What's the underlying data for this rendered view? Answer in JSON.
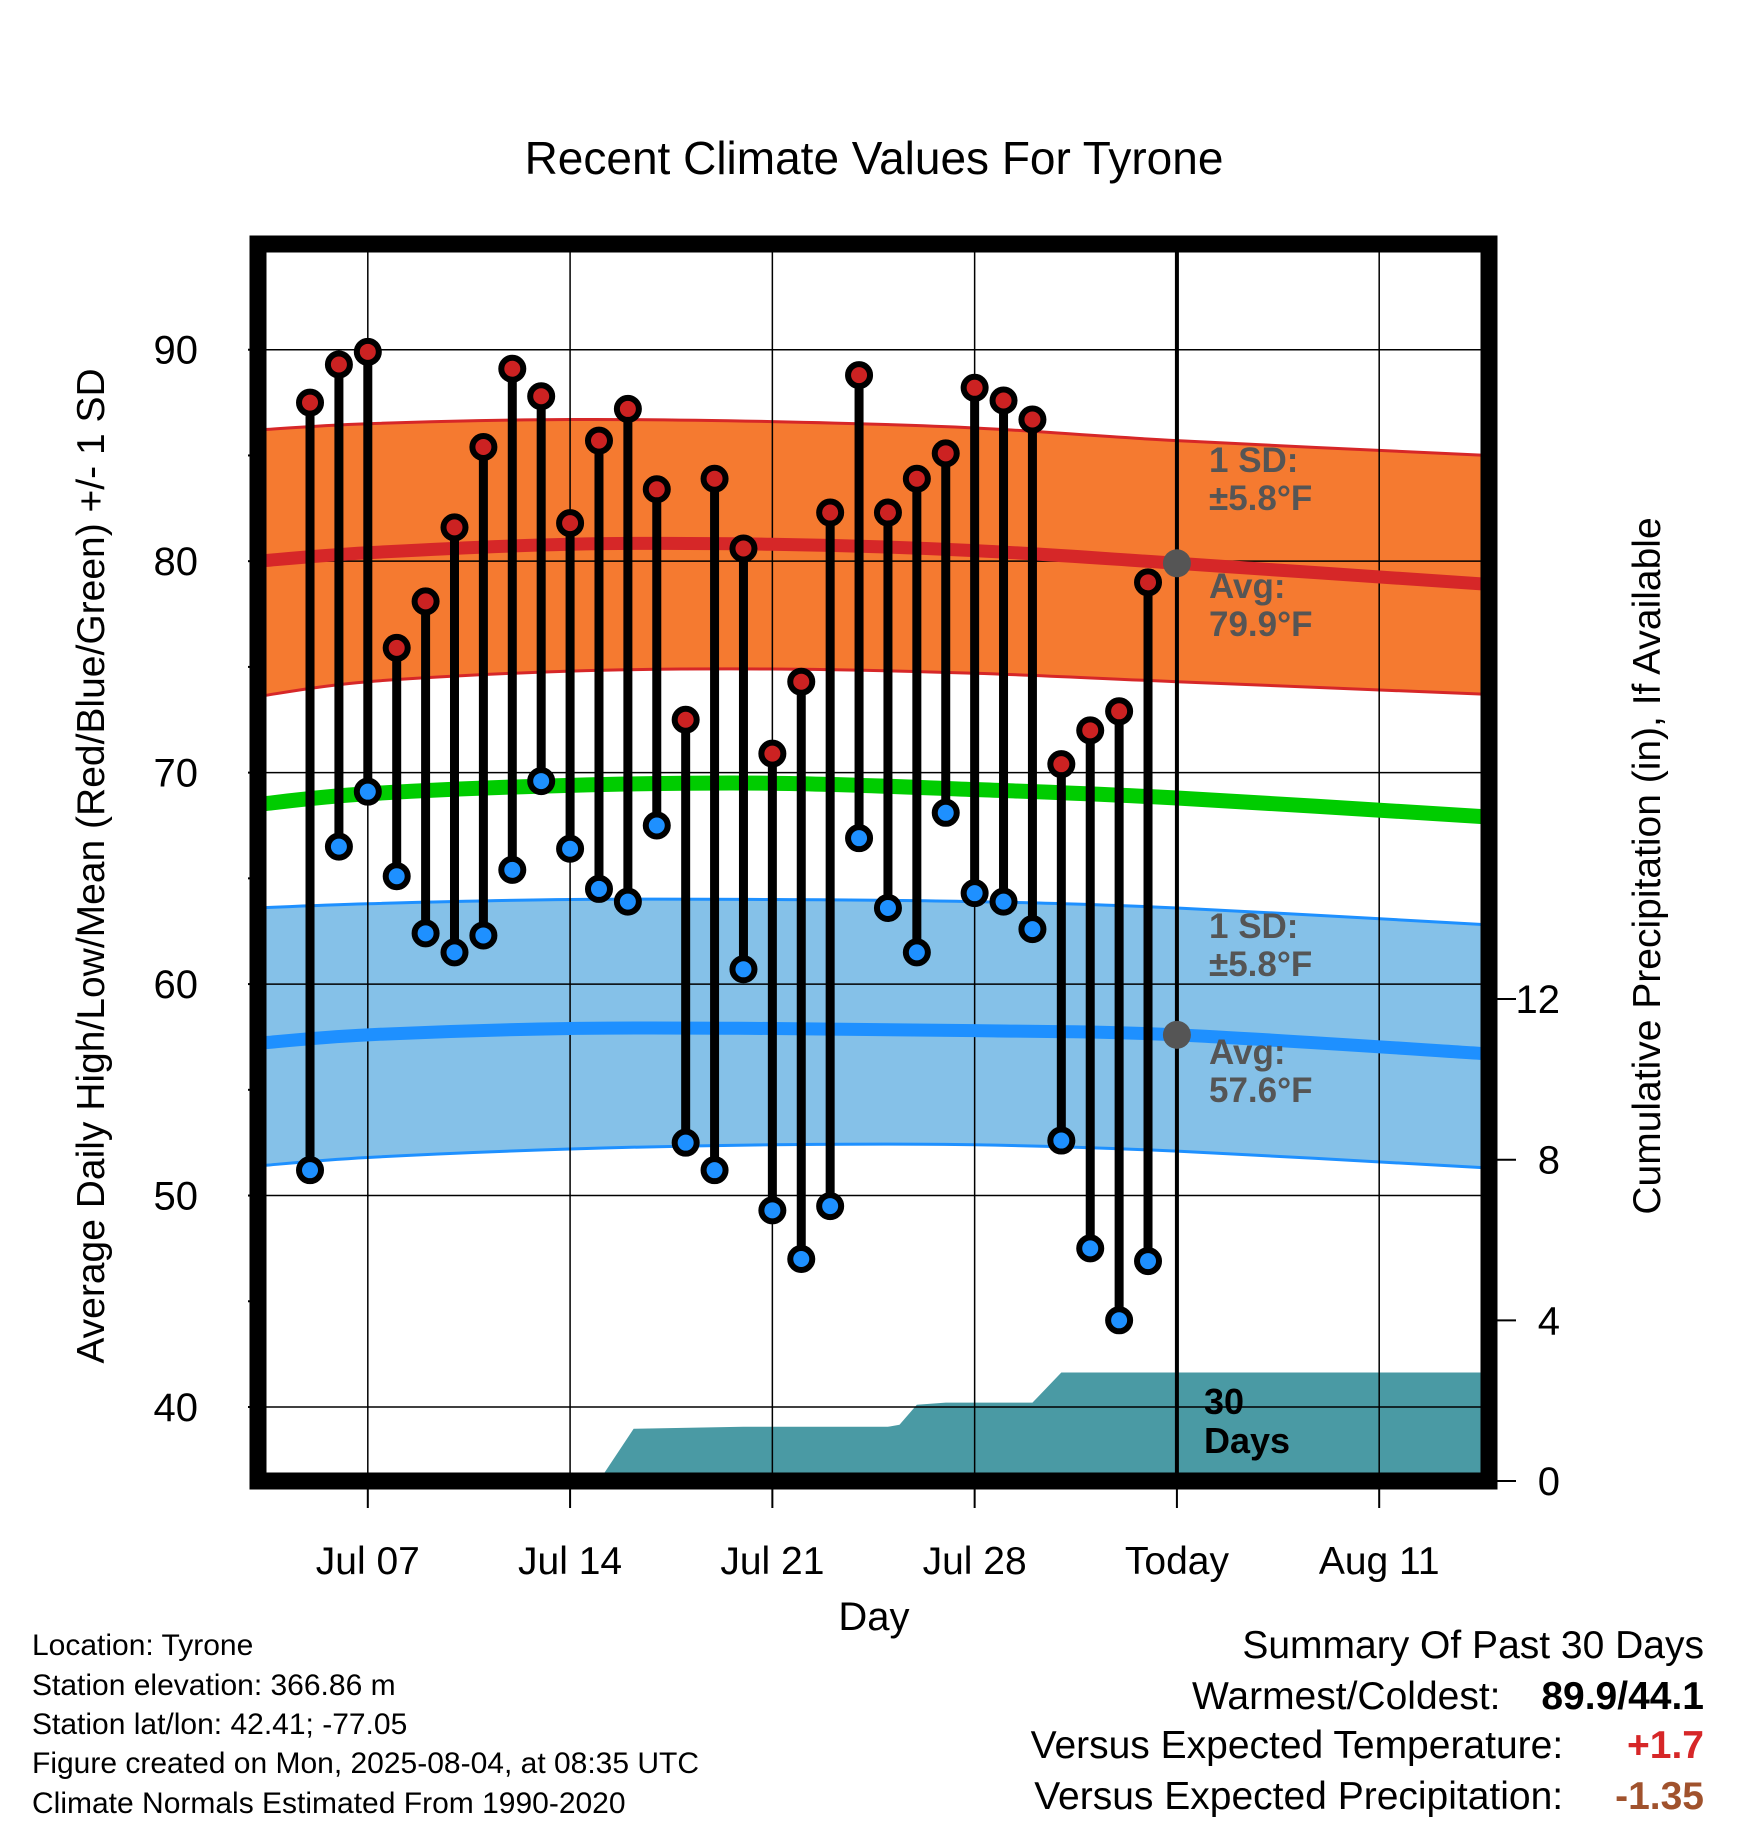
{
  "chart_data": {
    "type": "line",
    "title": "Recent Climate Values For Tyrone",
    "xlabel": "Day",
    "ylabel": "Average Daily High/Low/Mean (Red/Blue/Green) +/- 1 SD",
    "ylabel_right": "Cumulative Precipitation (in), If Available",
    "ylim": [
      36.5,
      95
    ],
    "ylim_right": [
      0,
      30.8
    ],
    "yticks": [
      40,
      50,
      60,
      70,
      80,
      90
    ],
    "yticks_right": [
      0,
      4,
      8,
      12
    ],
    "xlim": [
      3.2,
      45.8
    ],
    "xticks": [
      {
        "x": 7,
        "label": "Jul 07"
      },
      {
        "x": 14,
        "label": "Jul 14"
      },
      {
        "x": 21,
        "label": "Jul 21"
      },
      {
        "x": 28,
        "label": "Jul 28"
      },
      {
        "x": 35,
        "label": "Today"
      },
      {
        "x": 42,
        "label": "Aug 11"
      }
    ],
    "today_x": 35,
    "today_label": "30\nDays",
    "series": [
      {
        "name": "High",
        "color": "#cc2222",
        "x": [
          5,
          6,
          7,
          8,
          9,
          10,
          11,
          12,
          13,
          14,
          15,
          16,
          17,
          18,
          19,
          20,
          21,
          22,
          23,
          24,
          25,
          26,
          27,
          28,
          29,
          30,
          31,
          32,
          33,
          34
        ],
        "values": [
          87.5,
          89.3,
          89.9,
          75.9,
          78.1,
          81.6,
          85.4,
          89.1,
          87.8,
          81.8,
          85.7,
          87.2,
          83.4,
          72.5,
          83.9,
          80.6,
          70.9,
          74.3,
          82.3,
          88.8,
          82.3,
          83.9,
          85.1,
          88.2,
          87.6,
          86.7,
          70.4,
          72.0,
          72.9,
          79.0
        ]
      },
      {
        "name": "Low",
        "color": "#1e90ff",
        "x": [
          5,
          6,
          7,
          8,
          9,
          10,
          11,
          12,
          13,
          14,
          15,
          16,
          17,
          18,
          19,
          20,
          21,
          22,
          23,
          24,
          25,
          26,
          27,
          28,
          29,
          30,
          31,
          32,
          33,
          34
        ],
        "values": [
          51.2,
          66.5,
          69.1,
          65.1,
          62.4,
          61.5,
          62.3,
          65.4,
          69.6,
          66.4,
          64.5,
          63.9,
          67.5,
          52.5,
          51.2,
          60.7,
          49.3,
          47.0,
          49.5,
          66.9,
          63.6,
          61.5,
          68.1,
          64.3,
          63.9,
          62.6,
          52.6,
          47.5,
          44.1,
          46.9
        ]
      }
    ],
    "normals": {
      "x": [
        3.2,
        7,
        14,
        21,
        28,
        35,
        45.8
      ],
      "high_avg": [
        80.0,
        80.4,
        80.8,
        80.8,
        80.5,
        79.9,
        78.9
      ],
      "high_upper": [
        86.2,
        86.5,
        86.7,
        86.6,
        86.3,
        85.7,
        85.0
      ],
      "high_lower": [
        73.6,
        74.3,
        74.8,
        74.9,
        74.7,
        74.3,
        73.7
      ],
      "mean": [
        68.5,
        69.0,
        69.4,
        69.5,
        69.2,
        68.8,
        67.9
      ],
      "low_avg": [
        57.2,
        57.6,
        57.9,
        57.9,
        57.8,
        57.6,
        56.7
      ],
      "low_upper": [
        63.6,
        63.8,
        64.0,
        64.0,
        63.9,
        63.6,
        62.8
      ],
      "low_lower": [
        51.4,
        51.8,
        52.2,
        52.4,
        52.4,
        52.1,
        51.3
      ],
      "high_sd_label": [
        "1 SD:",
        "±5.8°F"
      ],
      "high_avg_label": [
        "Avg:",
        "79.9°F"
      ],
      "low_sd_label": [
        "1 SD:",
        "±5.8°F"
      ],
      "low_avg_label": [
        "Avg:",
        "57.6°F"
      ],
      "band_high_color": "#f57a30",
      "band_low_color": "#85c1e8",
      "mean_color": "#00cc00",
      "precip_color": "#4a9aa4",
      "annotation_color": "#555555"
    },
    "precip": {
      "x": [
        13.0,
        15.0,
        16.2,
        20.0,
        25.0,
        25.4,
        26.0,
        27.0,
        30.0,
        31.0,
        35.0,
        45.8
      ],
      "values": [
        0,
        0,
        1.3,
        1.35,
        1.35,
        1.4,
        1.9,
        1.95,
        1.95,
        2.7,
        2.7,
        2.7
      ]
    },
    "grid": true
  },
  "footer": {
    "location": "Location: Tyrone",
    "elevation": "Station elevation: 366.86 m",
    "latlon": "Station lat/lon: 42.41; -77.05",
    "created": "Figure created on Mon, 2025-08-04, at 08:35 UTC",
    "normals": "Climate Normals Estimated From 1990-2020"
  },
  "summary": {
    "heading": "Summary Of Past 30 Days",
    "warm_label": "Warmest/Coldest:",
    "warm_value": "89.9/44.1",
    "temp_label": "Versus Expected Temperature:",
    "temp_value": "+1.7",
    "temp_color": "#d62728",
    "precip_label": "Versus Expected Precipitation:",
    "precip_value": "-1.35",
    "precip_color": "#a0522d"
  }
}
